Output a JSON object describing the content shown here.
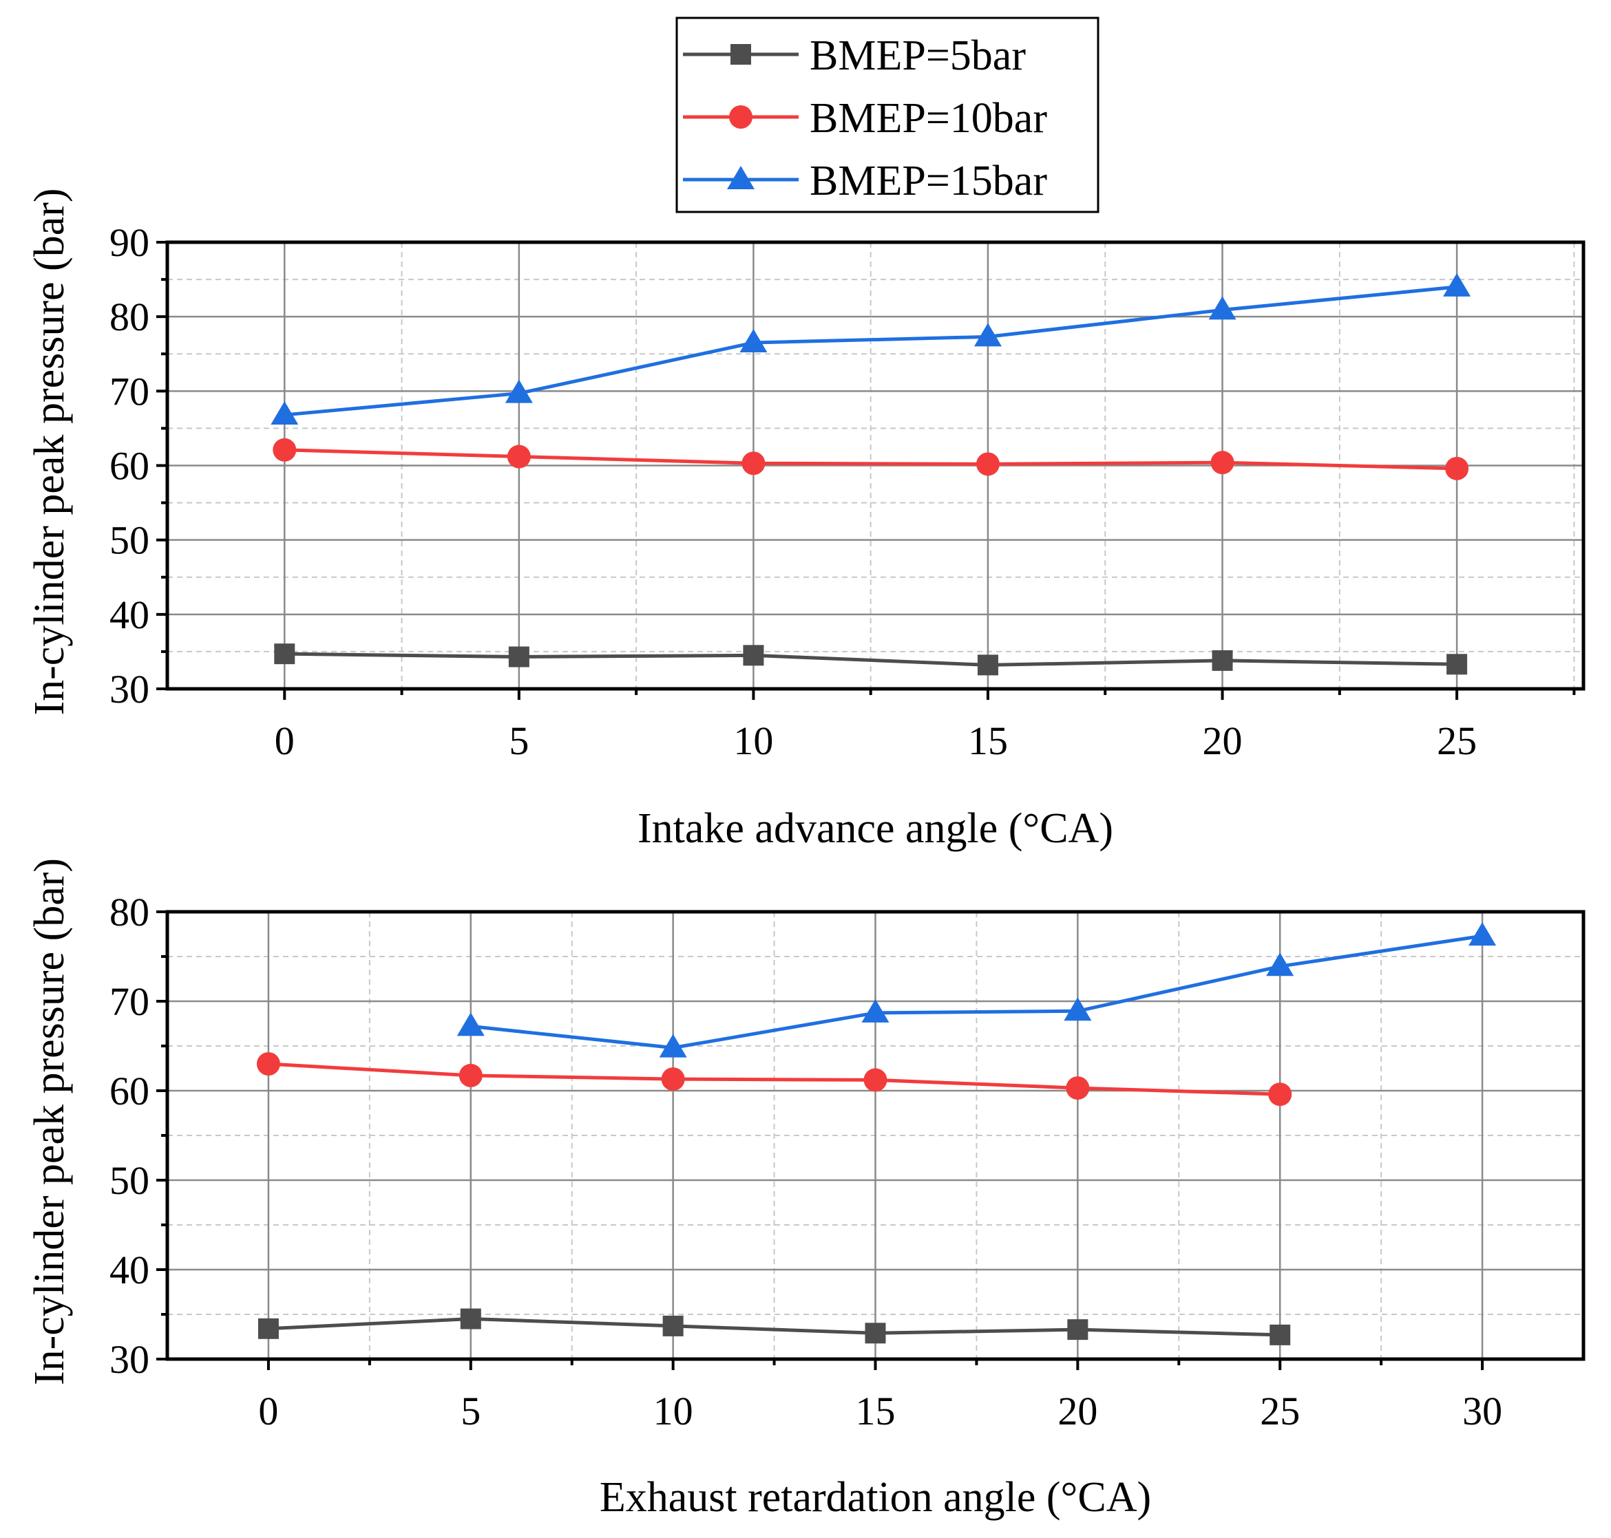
{
  "legend": [
    {
      "label": "BMEP=5bar",
      "color": "#4d4d4d",
      "marker": "square"
    },
    {
      "label": "BMEP=10bar",
      "color": "#f23c3c",
      "marker": "circle"
    },
    {
      "label": "BMEP=15bar",
      "color": "#1f6fe0",
      "marker": "triangle"
    }
  ],
  "chart_data": [
    {
      "type": "line",
      "title": "",
      "xlabel": "Intake advance angle (°CA)",
      "ylabel": "In-cylinder peak pressure (bar)",
      "xlim": [
        -2.5,
        27.7
      ],
      "ylim": [
        30,
        90
      ],
      "xticks": [
        0,
        5,
        10,
        15,
        20,
        25
      ],
      "yticks": [
        30,
        40,
        50,
        60,
        70,
        80,
        90
      ],
      "grid": true,
      "series": [
        {
          "name": "BMEP=5bar",
          "x": [
            0,
            5,
            10,
            15,
            20,
            25
          ],
          "values": [
            34.7,
            34.3,
            34.5,
            33.2,
            33.8,
            33.3
          ]
        },
        {
          "name": "BMEP=10bar",
          "x": [
            0,
            5,
            10,
            15,
            20,
            25
          ],
          "values": [
            62.1,
            61.2,
            60.3,
            60.2,
            60.4,
            59.6
          ]
        },
        {
          "name": "BMEP=15bar",
          "x": [
            0,
            5,
            10,
            15,
            20,
            25
          ],
          "values": [
            66.8,
            69.7,
            76.5,
            77.3,
            80.9,
            84.0
          ]
        }
      ]
    },
    {
      "type": "line",
      "title": "",
      "xlabel": "Exhaust retardation angle (°CA)",
      "ylabel": "In-cylinder peak pressure (bar)",
      "xlim": [
        -2.5,
        32.5
      ],
      "ylim": [
        30,
        80
      ],
      "xticks": [
        0,
        5,
        10,
        15,
        20,
        25,
        30
      ],
      "yticks": [
        30,
        40,
        50,
        60,
        70,
        80
      ],
      "grid": true,
      "series": [
        {
          "name": "BMEP=5bar",
          "x": [
            0,
            5,
            10,
            15,
            20,
            25
          ],
          "values": [
            33.4,
            34.5,
            33.7,
            32.9,
            33.3,
            32.7
          ]
        },
        {
          "name": "BMEP=10bar",
          "x": [
            0,
            5,
            10,
            15,
            20,
            25
          ],
          "values": [
            63.0,
            61.7,
            61.3,
            61.2,
            60.3,
            59.6
          ]
        },
        {
          "name": "BMEP=15bar",
          "x": [
            5,
            10,
            15,
            20,
            25,
            30
          ],
          "values": [
            67.2,
            64.8,
            68.7,
            68.9,
            73.9,
            77.3
          ]
        }
      ]
    }
  ]
}
